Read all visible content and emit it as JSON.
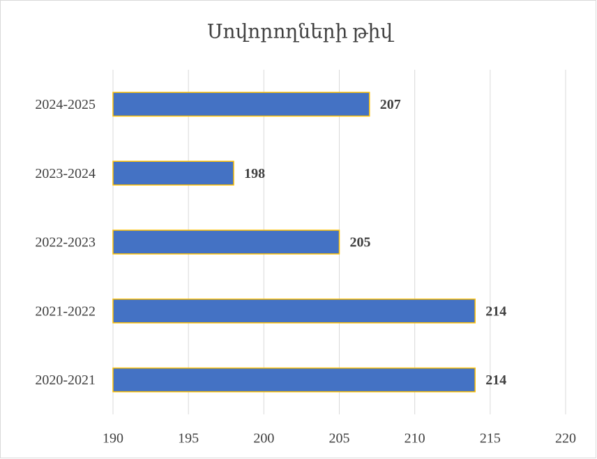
{
  "chart_data": {
    "type": "bar",
    "orientation": "horizontal",
    "title": "Սովորողների թիվ",
    "categories": [
      "2020-2021",
      "2021-2022",
      "2022-2023",
      "2023-2024",
      "2024-2025"
    ],
    "values": [
      214,
      214,
      205,
      198,
      207
    ],
    "color": "#4472c4",
    "edge_color": "#ffc000",
    "xlim": [
      190,
      220
    ],
    "xticks": [
      190,
      195,
      200,
      205,
      210,
      215,
      220
    ],
    "grid": true
  }
}
